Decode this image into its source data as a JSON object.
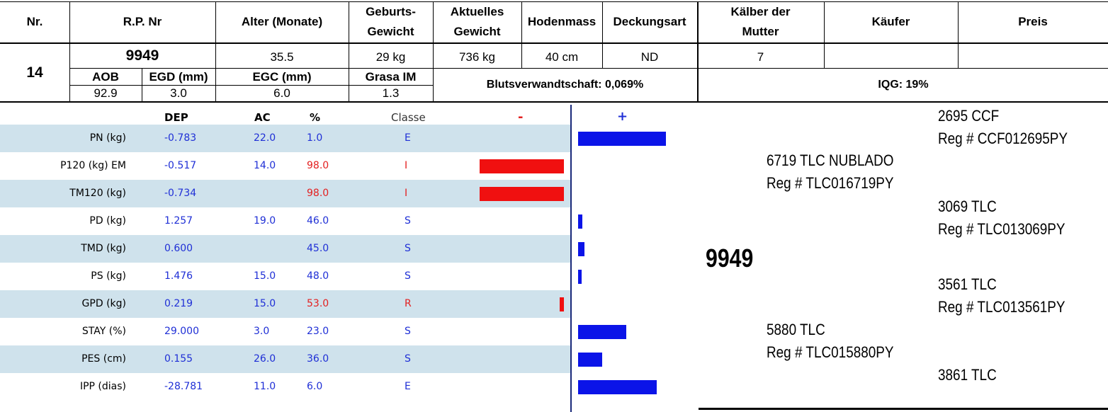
{
  "header": {
    "columns": {
      "nr": "Nr.",
      "rp_nr": "R.P. Nr",
      "alter": "Alter (Monate)",
      "geburts_1": "Geburts-",
      "geburts_2": "Gewicht",
      "aktuelles_1": "Aktuelles",
      "aktuelles_2": "Gewicht",
      "hodenmass": "Hodenmass",
      "deckungsart": "Deckungsart",
      "kaelber_1": "Kälber der",
      "kaelber_2": "Mutter",
      "kaeufer": "Käufer",
      "preis": "Preis"
    },
    "values": {
      "nr": "14",
      "rp_nr": "9949",
      "alter": "35.5",
      "geburts": "29 kg",
      "aktuelles": "736 kg",
      "hodenmass": "40 cm",
      "deckungsart": "ND",
      "kaelber": "7",
      "kaeufer": "",
      "preis": ""
    },
    "carcass_labels": {
      "aob": "AOB",
      "egd": "EGD (mm)",
      "egc": "EGC (mm)",
      "grasa": "Grasa IM"
    },
    "carcass_values": {
      "aob": "92.9",
      "egd": "3.0",
      "egc": "6.0",
      "grasa": "1.3"
    },
    "blutsverwandtschaft": "Blutsverwandtschaft: 0,069%",
    "iqg": "IQG: 19%"
  },
  "epd_table": {
    "headers": {
      "dep": "DEP",
      "ac": "AC",
      "pct": "%",
      "classe": "Classe",
      "minus": "-",
      "plus": "+"
    },
    "rows": [
      {
        "trait": "PN (kg)",
        "dep": "-0.783",
        "ac": "22.0",
        "pct": "1.0",
        "pct_color": "#1f2fd6",
        "classe": "E",
        "classe_color": "#1f2fd6",
        "bar": 1.0,
        "bar_sign": "pos"
      },
      {
        "trait": "P120 (kg) EM",
        "dep": "-0.517",
        "ac": "14.0",
        "pct": "98.0",
        "pct_color": "#e32020",
        "classe": "I",
        "classe_color": "#e32020",
        "bar": 0.96,
        "bar_sign": "neg"
      },
      {
        "trait": "TM120 (kg)",
        "dep": "-0.734",
        "ac": "",
        "pct": "98.0",
        "pct_color": "#e32020",
        "classe": "I",
        "classe_color": "#e32020",
        "bar": 0.96,
        "bar_sign": "neg"
      },
      {
        "trait": "PD (kg)",
        "dep": "1.257",
        "ac": "19.0",
        "pct": "46.0",
        "pct_color": "#1f2fd6",
        "classe": "S",
        "classe_color": "#1f2fd6",
        "bar": 0.08,
        "bar_sign": "pos"
      },
      {
        "trait": "TMD (kg)",
        "dep": "0.600",
        "ac": "",
        "pct": "45.0",
        "pct_color": "#1f2fd6",
        "classe": "S",
        "classe_color": "#1f2fd6",
        "bar": 0.1,
        "bar_sign": "pos"
      },
      {
        "trait": "PS (kg)",
        "dep": "1.476",
        "ac": "15.0",
        "pct": "48.0",
        "pct_color": "#1f2fd6",
        "classe": "S",
        "classe_color": "#1f2fd6",
        "bar": 0.04,
        "bar_sign": "pos"
      },
      {
        "trait": "GPD (kg)",
        "dep": "0.219",
        "ac": "15.0",
        "pct": "53.0",
        "pct_color": "#e32020",
        "classe": "R",
        "classe_color": "#e32020",
        "bar": 0.05,
        "bar_sign": "neg"
      },
      {
        "trait": "STAY (%)",
        "dep": "29.000",
        "ac": "3.0",
        "pct": "23.0",
        "pct_color": "#1f2fd6",
        "classe": "S",
        "classe_color": "#1f2fd6",
        "bar": 0.56,
        "bar_sign": "pos"
      },
      {
        "trait": "PES (cm)",
        "dep": "0.155",
        "ac": "26.0",
        "pct": "36.0",
        "pct_color": "#1f2fd6",
        "classe": "S",
        "classe_color": "#1f2fd6",
        "bar": 0.3,
        "bar_sign": "pos"
      },
      {
        "trait": "IPP (dias)",
        "dep": "-28.781",
        "ac": "11.0",
        "pct": "6.0",
        "pct_color": "#1f2fd6",
        "classe": "E",
        "classe_color": "#1f2fd6",
        "bar": 0.9,
        "bar_sign": "pos"
      }
    ]
  },
  "pedigree": {
    "animal": "9949",
    "sire": {
      "name": "6719 TLC NUBLADO",
      "reg": "Reg # TLC016719PY"
    },
    "sire_sire": {
      "name": "2695 CCF",
      "reg": "Reg # CCF012695PY"
    },
    "sire_dam": {
      "name": "3069 TLC",
      "reg": "Reg # TLC013069PY"
    },
    "dam": {
      "name": "5880 TLC",
      "reg": "Reg # TLC015880PY"
    },
    "dam_sire": {
      "name": "3561 TLC",
      "reg": "Reg # TLC013561PY"
    },
    "dam_dam": {
      "name": "3861 TLC"
    }
  }
}
